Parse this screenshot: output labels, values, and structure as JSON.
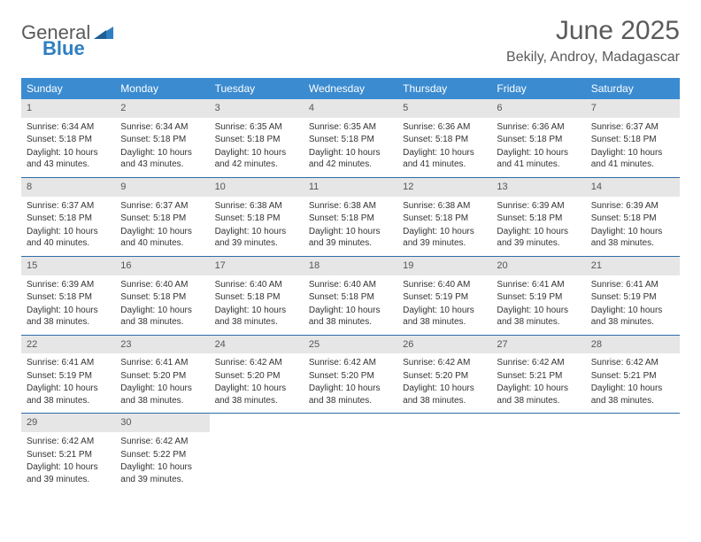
{
  "logo": {
    "text_a": "General",
    "text_b": "Blue"
  },
  "title": "June 2025",
  "location": "Bekily, Androy, Madagascar",
  "colors": {
    "header_bg": "#3b8bd0",
    "header_text": "#ffffff",
    "daynum_bg": "#e6e6e6",
    "week_divider": "#2d6da8",
    "body_text": "#333333",
    "title_text": "#5a5a5a",
    "logo_accent": "#2f7fc1"
  },
  "dow": [
    "Sunday",
    "Monday",
    "Tuesday",
    "Wednesday",
    "Thursday",
    "Friday",
    "Saturday"
  ],
  "days": [
    {
      "n": 1,
      "sunrise": "6:34 AM",
      "sunset": "5:18 PM",
      "daylight": "10 hours and 43 minutes."
    },
    {
      "n": 2,
      "sunrise": "6:34 AM",
      "sunset": "5:18 PM",
      "daylight": "10 hours and 43 minutes."
    },
    {
      "n": 3,
      "sunrise": "6:35 AM",
      "sunset": "5:18 PM",
      "daylight": "10 hours and 42 minutes."
    },
    {
      "n": 4,
      "sunrise": "6:35 AM",
      "sunset": "5:18 PM",
      "daylight": "10 hours and 42 minutes."
    },
    {
      "n": 5,
      "sunrise": "6:36 AM",
      "sunset": "5:18 PM",
      "daylight": "10 hours and 41 minutes."
    },
    {
      "n": 6,
      "sunrise": "6:36 AM",
      "sunset": "5:18 PM",
      "daylight": "10 hours and 41 minutes."
    },
    {
      "n": 7,
      "sunrise": "6:37 AM",
      "sunset": "5:18 PM",
      "daylight": "10 hours and 41 minutes."
    },
    {
      "n": 8,
      "sunrise": "6:37 AM",
      "sunset": "5:18 PM",
      "daylight": "10 hours and 40 minutes."
    },
    {
      "n": 9,
      "sunrise": "6:37 AM",
      "sunset": "5:18 PM",
      "daylight": "10 hours and 40 minutes."
    },
    {
      "n": 10,
      "sunrise": "6:38 AM",
      "sunset": "5:18 PM",
      "daylight": "10 hours and 39 minutes."
    },
    {
      "n": 11,
      "sunrise": "6:38 AM",
      "sunset": "5:18 PM",
      "daylight": "10 hours and 39 minutes."
    },
    {
      "n": 12,
      "sunrise": "6:38 AM",
      "sunset": "5:18 PM",
      "daylight": "10 hours and 39 minutes."
    },
    {
      "n": 13,
      "sunrise": "6:39 AM",
      "sunset": "5:18 PM",
      "daylight": "10 hours and 39 minutes."
    },
    {
      "n": 14,
      "sunrise": "6:39 AM",
      "sunset": "5:18 PM",
      "daylight": "10 hours and 38 minutes."
    },
    {
      "n": 15,
      "sunrise": "6:39 AM",
      "sunset": "5:18 PM",
      "daylight": "10 hours and 38 minutes."
    },
    {
      "n": 16,
      "sunrise": "6:40 AM",
      "sunset": "5:18 PM",
      "daylight": "10 hours and 38 minutes."
    },
    {
      "n": 17,
      "sunrise": "6:40 AM",
      "sunset": "5:18 PM",
      "daylight": "10 hours and 38 minutes."
    },
    {
      "n": 18,
      "sunrise": "6:40 AM",
      "sunset": "5:18 PM",
      "daylight": "10 hours and 38 minutes."
    },
    {
      "n": 19,
      "sunrise": "6:40 AM",
      "sunset": "5:19 PM",
      "daylight": "10 hours and 38 minutes."
    },
    {
      "n": 20,
      "sunrise": "6:41 AM",
      "sunset": "5:19 PM",
      "daylight": "10 hours and 38 minutes."
    },
    {
      "n": 21,
      "sunrise": "6:41 AM",
      "sunset": "5:19 PM",
      "daylight": "10 hours and 38 minutes."
    },
    {
      "n": 22,
      "sunrise": "6:41 AM",
      "sunset": "5:19 PM",
      "daylight": "10 hours and 38 minutes."
    },
    {
      "n": 23,
      "sunrise": "6:41 AM",
      "sunset": "5:20 PM",
      "daylight": "10 hours and 38 minutes."
    },
    {
      "n": 24,
      "sunrise": "6:42 AM",
      "sunset": "5:20 PM",
      "daylight": "10 hours and 38 minutes."
    },
    {
      "n": 25,
      "sunrise": "6:42 AM",
      "sunset": "5:20 PM",
      "daylight": "10 hours and 38 minutes."
    },
    {
      "n": 26,
      "sunrise": "6:42 AM",
      "sunset": "5:20 PM",
      "daylight": "10 hours and 38 minutes."
    },
    {
      "n": 27,
      "sunrise": "6:42 AM",
      "sunset": "5:21 PM",
      "daylight": "10 hours and 38 minutes."
    },
    {
      "n": 28,
      "sunrise": "6:42 AM",
      "sunset": "5:21 PM",
      "daylight": "10 hours and 38 minutes."
    },
    {
      "n": 29,
      "sunrise": "6:42 AM",
      "sunset": "5:21 PM",
      "daylight": "10 hours and 39 minutes."
    },
    {
      "n": 30,
      "sunrise": "6:42 AM",
      "sunset": "5:22 PM",
      "daylight": "10 hours and 39 minutes."
    }
  ],
  "labels": {
    "sunrise": "Sunrise:",
    "sunset": "Sunset:",
    "daylight": "Daylight:"
  },
  "layout": {
    "start_dow": 0,
    "cols": 7,
    "total_cells": 35
  }
}
